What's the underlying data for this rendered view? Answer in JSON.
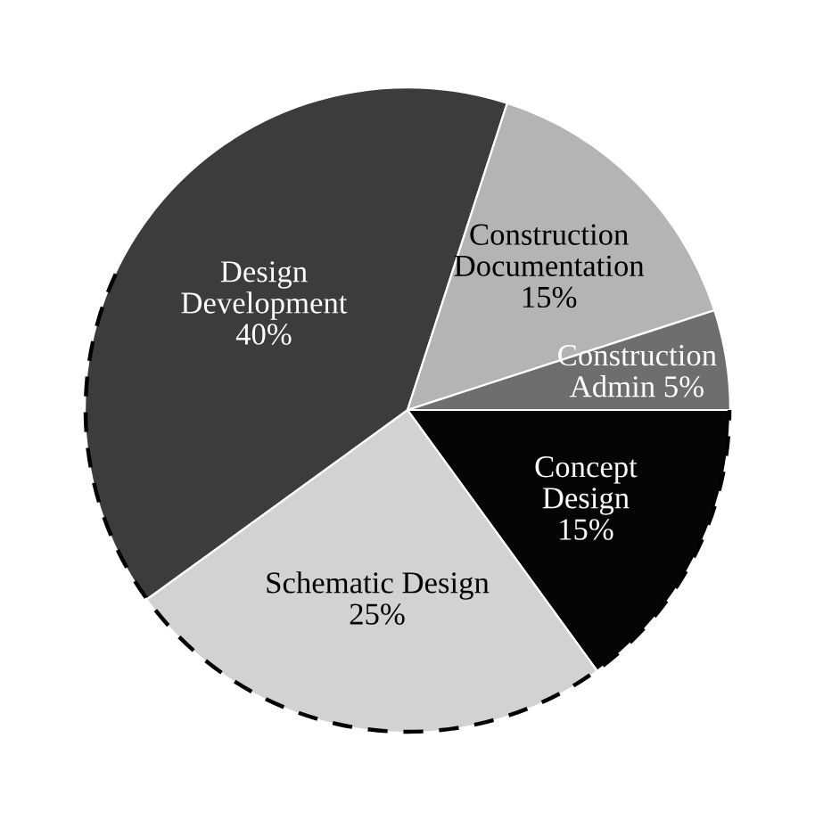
{
  "chart_data": {
    "type": "pie",
    "categories": [
      "Concept\nDesign",
      "Schematic Design",
      "Design\nDevelopment",
      "Construction\nDocumentation",
      "Construction\nAdmin"
    ],
    "values": [
      15,
      25,
      40,
      15,
      5
    ],
    "colors": [
      "#050505",
      "#d2d2d2",
      "#3c3c3c",
      "#b4b4b4",
      "#6e6e6e"
    ],
    "value_labels": [
      "15%",
      "25%",
      "40%",
      "15%",
      "5%"
    ],
    "legend": false
  }
}
